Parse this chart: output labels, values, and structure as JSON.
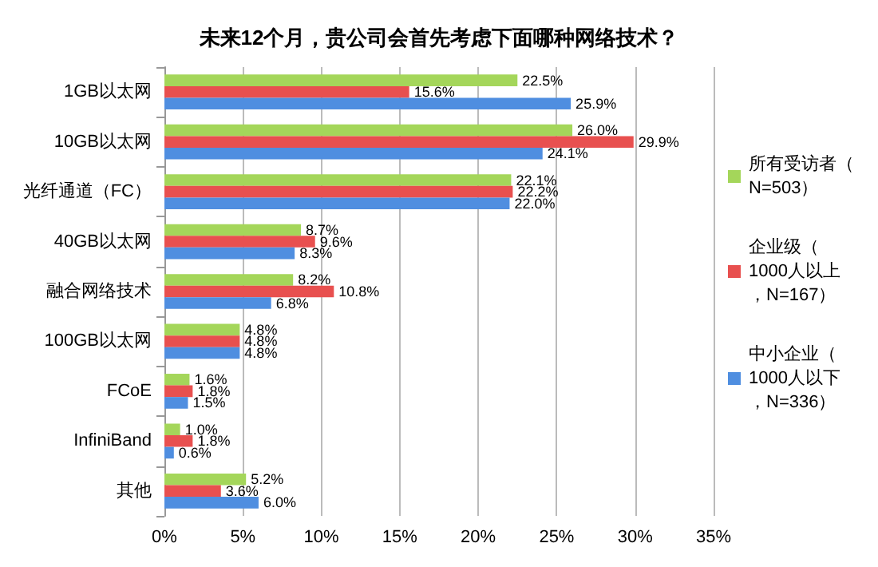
{
  "chart_data": {
    "type": "bar",
    "orientation": "horizontal",
    "title": "未来12个月，贵公司会首先考虑下面哪种网络技术？",
    "categories": [
      "1GB以太网",
      "10GB以太网",
      "光纤通道（FC）",
      "40GB以太网",
      "融合网络技术",
      "100GB以太网",
      "FCoE",
      "InfiniBand",
      "其他"
    ],
    "series": [
      {
        "name": "所有受访者（N=503）",
        "color": "#a4d65a",
        "values": [
          22.5,
          26.0,
          22.1,
          8.7,
          8.2,
          4.8,
          1.6,
          1.0,
          5.2
        ],
        "value_labels": [
          "22.5%",
          "26.0%",
          "22.1%",
          "8.7%",
          "8.2%",
          "4.8%",
          "1.6%",
          "1.0%",
          "5.2%"
        ]
      },
      {
        "name": "企业级（1000人以上，N=167）",
        "color": "#e8504f",
        "values": [
          15.6,
          29.9,
          22.2,
          9.6,
          10.8,
          4.8,
          1.8,
          1.8,
          3.6
        ],
        "value_labels": [
          "15.6%",
          "29.9%",
          "22.2%",
          "9.6%",
          "10.8%",
          "4.8%",
          "1.8%",
          "1.8%",
          "3.6%"
        ]
      },
      {
        "name": "中小企业（1000人以下，N=336）",
        "color": "#4f8ee0",
        "values": [
          25.9,
          24.1,
          22.0,
          8.3,
          6.8,
          4.8,
          1.5,
          0.6,
          6.0
        ],
        "value_labels": [
          "25.9%",
          "24.1%",
          "22.0%",
          "8.3%",
          "6.8%",
          "4.8%",
          "1.5%",
          "0.6%",
          "6.0%"
        ]
      }
    ],
    "xlim": [
      0,
      35
    ],
    "xticks": [
      {
        "value": 0,
        "label": "0%"
      },
      {
        "value": 5,
        "label": "5%"
      },
      {
        "value": 10,
        "label": "10%"
      },
      {
        "value": 15,
        "label": "15%"
      },
      {
        "value": 20,
        "label": "20%"
      },
      {
        "value": 25,
        "label": "25%"
      },
      {
        "value": 30,
        "label": "30%"
      },
      {
        "value": 35,
        "label": "35%"
      }
    ],
    "grid": "x",
    "legend": "right"
  }
}
